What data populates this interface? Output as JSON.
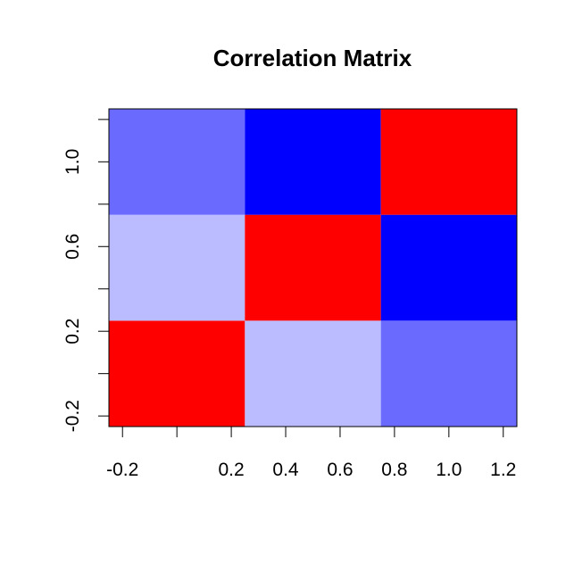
{
  "chart_data": {
    "type": "heatmap",
    "title": "Correlation Matrix",
    "xlabel": "",
    "ylabel": "",
    "xlim": [
      -0.25,
      1.25
    ],
    "ylim": [
      -0.25,
      1.25
    ],
    "x_ticks": [
      -0.2,
      0.0,
      0.2,
      0.4,
      0.6,
      0.8,
      1.0,
      1.2
    ],
    "x_tick_labels": [
      "-0.2",
      "",
      "0.2",
      "0.4",
      "0.6",
      "0.8",
      "1.0",
      "1.2"
    ],
    "y_ticks": [
      -0.2,
      0.0,
      0.2,
      0.4,
      0.6,
      0.8,
      1.0,
      1.2
    ],
    "y_tick_labels": [
      "-0.2",
      "",
      "0.2",
      "",
      "0.6",
      "",
      "1.0",
      ""
    ],
    "x_centers": [
      0.0,
      0.5,
      1.0
    ],
    "y_centers": [
      0.0,
      0.5,
      1.0
    ],
    "cell_width": 0.5,
    "cell_height": 0.5,
    "values": [
      [
        1.0,
        -0.5,
        -1.0
      ],
      [
        -0.5,
        1.0,
        -1.0
      ],
      [
        -1.0,
        -1.0,
        1.0
      ]
    ],
    "colors": {
      "1.0": "#FF0000",
      "-0.5": "#BBBBFF",
      "-1.0": "#6A6AFF",
      "-1.0b": "#0000FF"
    },
    "cell_colors": [
      [
        "#FF0000",
        "#BBBBFF",
        "#6A6AFF"
      ],
      [
        "#BBBBFF",
        "#FF0000",
        "#0000FF"
      ],
      [
        "#6A6AFF",
        "#0000FF",
        "#FF0000"
      ]
    ]
  }
}
